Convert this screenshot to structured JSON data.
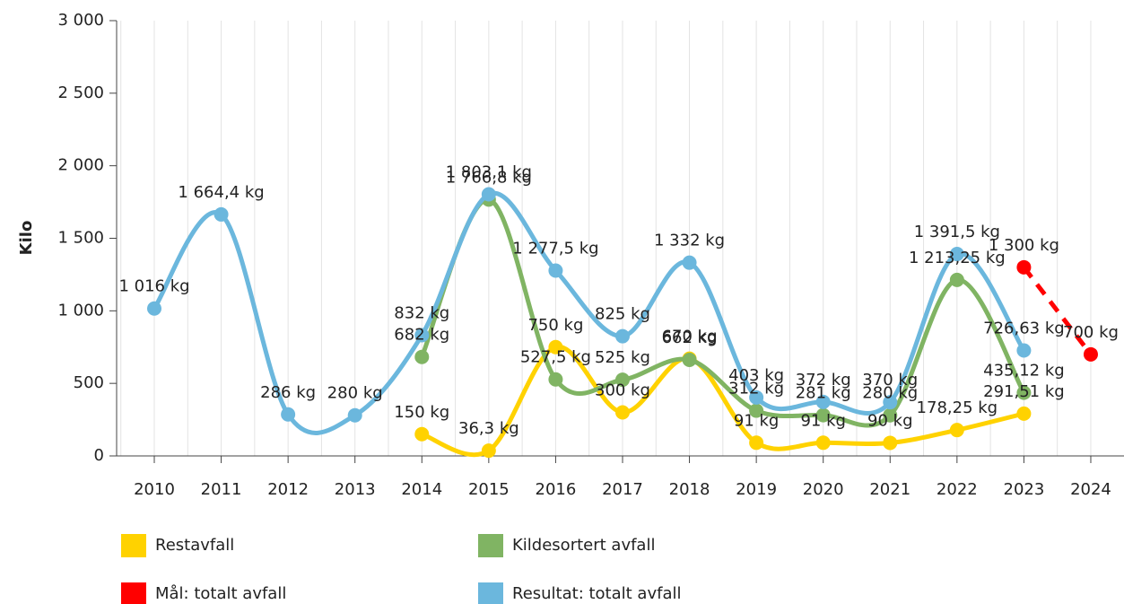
{
  "chart_data": {
    "type": "line",
    "y_label": "Kilo",
    "categories": [
      "2010",
      "2011",
      "2012",
      "2013",
      "2014",
      "2015",
      "2016",
      "2017",
      "2018",
      "2019",
      "2020",
      "2021",
      "2022",
      "2023",
      "2024"
    ],
    "ylim": [
      0,
      3000
    ],
    "yticks": [
      0,
      500,
      {
        "value": 1000,
        "label": "1 000"
      },
      {
        "value": 1500,
        "label": "1 500"
      },
      {
        "value": 2000,
        "label": "2 000"
      },
      {
        "value": 2500,
        "label": "2 500"
      },
      {
        "value": 3000,
        "label": "3 000"
      }
    ],
    "grid": "x",
    "series": [
      {
        "name": "Restavfall",
        "color": "#ffd200",
        "dashed": false,
        "values": [
          null,
          null,
          null,
          null,
          150,
          36.3,
          750,
          300,
          670,
          91,
          91,
          90,
          178.25,
          291.51,
          null
        ],
        "value_labels": [
          null,
          null,
          null,
          null,
          "150 kg",
          "36,3 kg",
          "750 kg",
          "300 kg",
          "670 kg",
          "91 kg",
          "91 kg",
          "90 kg",
          "178,25 kg",
          "291,51 kg",
          null
        ]
      },
      {
        "name": "Kildesortert avfall",
        "color": "#80b463",
        "dashed": false,
        "values": [
          null,
          null,
          null,
          null,
          682,
          1766.8,
          527.5,
          525,
          662,
          312,
          281,
          280,
          1213.25,
          435.12,
          null
        ],
        "value_labels": [
          null,
          null,
          null,
          null,
          "682 kg",
          "1 766,8 kg",
          "527,5 kg",
          "525 kg",
          "662 kg",
          "312 kg",
          "281 kg",
          "280 kg",
          "1 213,25 kg",
          "435,12 kg",
          null
        ]
      },
      {
        "name": "Mål: totalt avfall",
        "color": "#ff0000",
        "dashed": true,
        "values": [
          null,
          null,
          null,
          null,
          null,
          null,
          null,
          null,
          null,
          null,
          null,
          null,
          null,
          1300,
          700
        ],
        "value_labels": [
          null,
          null,
          null,
          null,
          null,
          null,
          null,
          null,
          null,
          null,
          null,
          null,
          null,
          "1 300 kg",
          "700 kg"
        ]
      },
      {
        "name": "Resultat: totalt avfall",
        "color": "#6bb7dd",
        "dashed": false,
        "values": [
          1016,
          1664.4,
          286,
          280,
          832,
          1803.1,
          1277.5,
          825,
          1332,
          403,
          372,
          370,
          1391.5,
          726.63,
          null
        ],
        "value_labels": [
          "1 016 kg",
          "1 664,4 kg",
          "286 kg",
          "280 kg",
          "832 kg",
          "1 803,1 kg",
          "1 277,5 kg",
          "825 kg",
          "1 332 kg",
          "403 kg",
          "372 kg",
          "370 kg",
          "1 391,5 kg",
          "726,63 kg",
          null
        ]
      }
    ]
  }
}
